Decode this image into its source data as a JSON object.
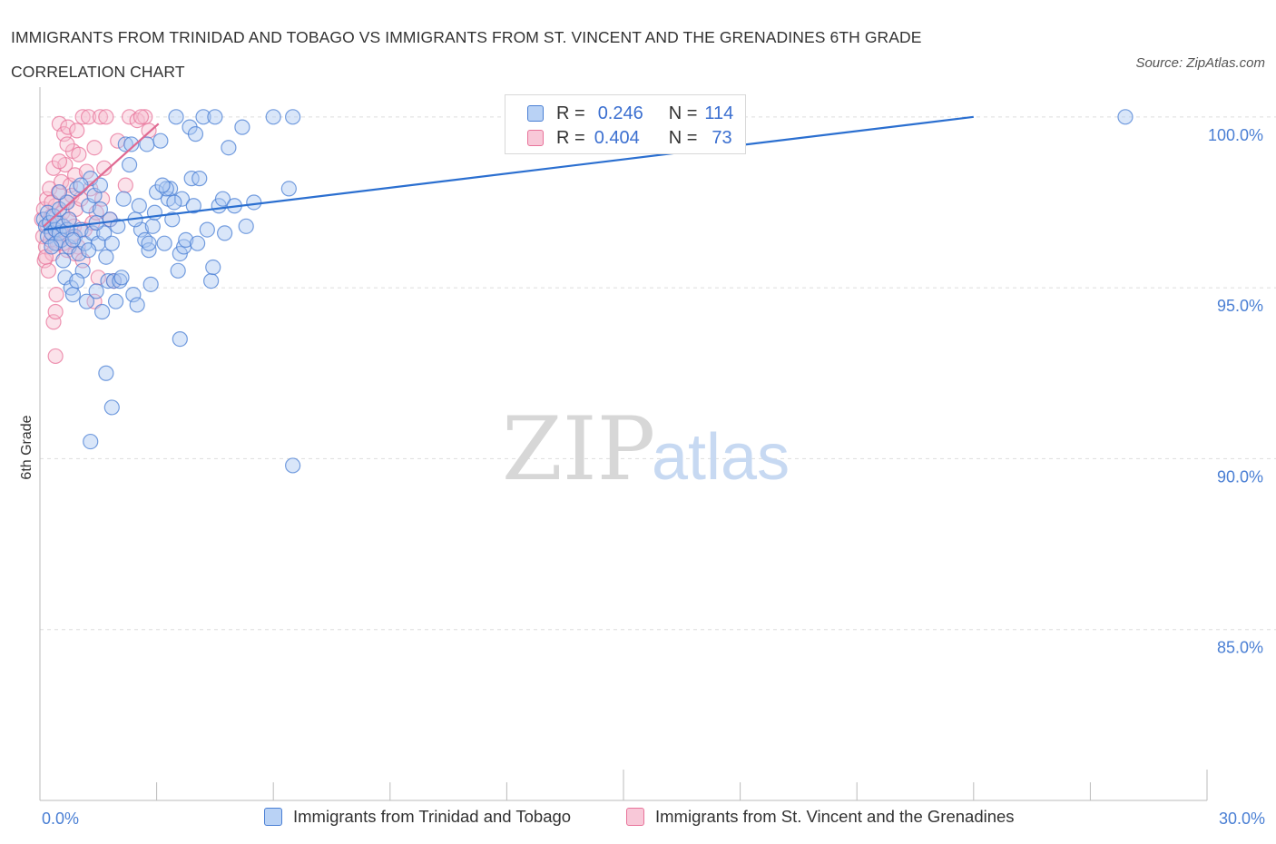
{
  "header": {
    "title": "IMMIGRANTS FROM TRINIDAD AND TOBAGO VS IMMIGRANTS FROM ST. VINCENT AND THE GRENADINES 6TH GRADE CORRELATION CHART",
    "source": "Source: ZipAtlas.com"
  },
  "legend": {
    "r_label": "R =",
    "n_label": "N =",
    "series1": {
      "r": "0.246",
      "n": "114"
    },
    "series2": {
      "r": "0.404",
      "n": "73"
    }
  },
  "watermark": {
    "zip": "ZIP",
    "atlas": "atlas"
  },
  "colors": {
    "blue": "#4a7fd4",
    "blue_fill": "#aac8f2",
    "blue_line": "#2b6fd0",
    "pink": "#e8739a",
    "pink_fill": "#f6bfd1",
    "pink_line": "#e06a92",
    "grid": "#dddddd"
  },
  "chart_data": {
    "type": "scatter",
    "title": "IMMIGRANTS FROM TRINIDAD AND TOBAGO VS IMMIGRANTS FROM ST. VINCENT AND THE GRENADINES 6TH GRADE CORRELATION CHART",
    "xlabel": "",
    "ylabel": "6th Grade",
    "xlim": [
      0,
      30
    ],
    "ylim": [
      80,
      100.5
    ],
    "x_tick_labels": [
      "0.0%",
      "30.0%"
    ],
    "y_ticks": [
      85,
      90,
      95,
      100
    ],
    "y_tick_labels": [
      "85.0%",
      "90.0%",
      "95.0%",
      "100.0%"
    ],
    "grid": true,
    "legend_position": "top-center and bottom",
    "series": [
      {
        "name": "Immigrants from Trinidad and Tobago",
        "color": "#4a7fd4",
        "trend": {
          "x": [
            0.1,
            24.0
          ],
          "y": [
            96.7,
            100.0
          ]
        },
        "points": [
          [
            0.1,
            97.0
          ],
          [
            0.15,
            96.8
          ],
          [
            0.2,
            96.5
          ],
          [
            0.2,
            97.2
          ],
          [
            0.25,
            96.9
          ],
          [
            0.3,
            96.6
          ],
          [
            0.35,
            97.1
          ],
          [
            0.4,
            96.7
          ],
          [
            0.4,
            96.3
          ],
          [
            0.45,
            96.9
          ],
          [
            0.5,
            96.6
          ],
          [
            0.5,
            97.3
          ],
          [
            0.55,
            96.4
          ],
          [
            0.6,
            96.8
          ],
          [
            0.65,
            95.3
          ],
          [
            0.7,
            97.5
          ],
          [
            0.75,
            96.2
          ],
          [
            0.8,
            95.0
          ],
          [
            0.85,
            94.8
          ],
          [
            0.9,
            96.5
          ],
          [
            0.95,
            97.9
          ],
          [
            1.0,
            96.0
          ],
          [
            1.05,
            96.7
          ],
          [
            1.1,
            95.5
          ],
          [
            1.15,
            96.3
          ],
          [
            1.2,
            94.6
          ],
          [
            1.25,
            97.4
          ],
          [
            1.3,
            98.2
          ],
          [
            1.35,
            96.6
          ],
          [
            1.4,
            97.7
          ],
          [
            1.45,
            94.9
          ],
          [
            1.5,
            96.3
          ],
          [
            1.55,
            98.0
          ],
          [
            1.6,
            94.3
          ],
          [
            1.65,
            96.6
          ],
          [
            1.7,
            95.9
          ],
          [
            1.75,
            95.2
          ],
          [
            1.8,
            97.0
          ],
          [
            1.85,
            96.3
          ],
          [
            1.9,
            95.2
          ],
          [
            1.95,
            94.6
          ],
          [
            2.0,
            96.8
          ],
          [
            2.05,
            95.2
          ],
          [
            2.1,
            95.3
          ],
          [
            2.15,
            97.6
          ],
          [
            2.2,
            99.2
          ],
          [
            2.3,
            98.6
          ],
          [
            2.4,
            94.8
          ],
          [
            2.5,
            94.5
          ],
          [
            2.55,
            97.4
          ],
          [
            2.6,
            96.7
          ],
          [
            2.7,
            96.4
          ],
          [
            2.75,
            99.2
          ],
          [
            2.8,
            96.1
          ],
          [
            2.85,
            95.1
          ],
          [
            2.9,
            96.8
          ],
          [
            2.95,
            97.2
          ],
          [
            3.0,
            97.8
          ],
          [
            3.1,
            99.3
          ],
          [
            3.2,
            96.3
          ],
          [
            3.3,
            97.6
          ],
          [
            3.35,
            97.9
          ],
          [
            3.4,
            97.0
          ],
          [
            3.5,
            100.0
          ],
          [
            3.55,
            95.5
          ],
          [
            3.6,
            96.0
          ],
          [
            3.65,
            97.6
          ],
          [
            3.7,
            96.2
          ],
          [
            3.75,
            96.4
          ],
          [
            3.85,
            99.7
          ],
          [
            3.9,
            98.2
          ],
          [
            3.95,
            97.4
          ],
          [
            4.0,
            99.5
          ],
          [
            4.1,
            98.2
          ],
          [
            4.2,
            100.0
          ],
          [
            4.3,
            96.7
          ],
          [
            4.4,
            95.2
          ],
          [
            4.45,
            95.6
          ],
          [
            4.5,
            100.0
          ],
          [
            4.6,
            97.4
          ],
          [
            4.7,
            97.6
          ],
          [
            4.75,
            96.6
          ],
          [
            4.85,
            99.1
          ],
          [
            5.0,
            97.4
          ],
          [
            5.2,
            99.7
          ],
          [
            5.3,
            96.8
          ],
          [
            5.5,
            97.5
          ],
          [
            6.0,
            100.0
          ],
          [
            6.4,
            97.9
          ],
          [
            6.5,
            100.0
          ],
          [
            3.6,
            93.5
          ],
          [
            1.7,
            92.5
          ],
          [
            1.85,
            91.5
          ],
          [
            1.3,
            90.5
          ],
          [
            6.5,
            89.8
          ],
          [
            0.6,
            95.8
          ],
          [
            1.25,
            96.1
          ],
          [
            0.7,
            96.7
          ],
          [
            0.5,
            97.8
          ],
          [
            2.8,
            96.3
          ],
          [
            3.25,
            97.9
          ],
          [
            1.05,
            98.0
          ],
          [
            0.85,
            96.4
          ],
          [
            2.45,
            97.0
          ],
          [
            1.55,
            97.3
          ],
          [
            0.95,
            95.2
          ],
          [
            2.35,
            99.2
          ],
          [
            0.3,
            96.2
          ],
          [
            0.75,
            97.0
          ],
          [
            1.45,
            96.9
          ],
          [
            3.15,
            98.0
          ],
          [
            27.9,
            100.0
          ],
          [
            4.05,
            96.3
          ],
          [
            3.45,
            97.5
          ]
        ]
      },
      {
        "name": "Immigrants from St. Vincent and the Grenadines",
        "color": "#e8739a",
        "trend": {
          "x": [
            0.1,
            3.05
          ],
          "y": [
            96.8,
            99.8
          ]
        },
        "points": [
          [
            0.05,
            97.0
          ],
          [
            0.08,
            96.5
          ],
          [
            0.1,
            97.3
          ],
          [
            0.12,
            95.8
          ],
          [
            0.15,
            96.2
          ],
          [
            0.18,
            97.6
          ],
          [
            0.2,
            96.8
          ],
          [
            0.22,
            95.5
          ],
          [
            0.25,
            97.9
          ],
          [
            0.27,
            96.4
          ],
          [
            0.3,
            97.1
          ],
          [
            0.32,
            96.0
          ],
          [
            0.35,
            98.5
          ],
          [
            0.38,
            96.7
          ],
          [
            0.4,
            97.4
          ],
          [
            0.42,
            94.8
          ],
          [
            0.45,
            96.3
          ],
          [
            0.48,
            97.8
          ],
          [
            0.5,
            99.8
          ],
          [
            0.52,
            96.9
          ],
          [
            0.55,
            98.1
          ],
          [
            0.58,
            97.2
          ],
          [
            0.6,
            96.6
          ],
          [
            0.62,
            99.5
          ],
          [
            0.65,
            98.6
          ],
          [
            0.68,
            97.5
          ],
          [
            0.7,
            96.1
          ],
          [
            0.72,
            99.7
          ],
          [
            0.75,
            97.0
          ],
          [
            0.78,
            98.0
          ],
          [
            0.8,
            96.5
          ],
          [
            0.82,
            97.7
          ],
          [
            0.85,
            99.0
          ],
          [
            0.88,
            96.8
          ],
          [
            0.9,
            98.3
          ],
          [
            0.92,
            97.3
          ],
          [
            0.95,
            99.6
          ],
          [
            0.98,
            96.2
          ],
          [
            1.0,
            98.9
          ],
          [
            1.05,
            97.6
          ],
          [
            1.1,
            100.0
          ],
          [
            1.15,
            96.7
          ],
          [
            1.2,
            98.4
          ],
          [
            1.25,
            100.0
          ],
          [
            1.3,
            97.9
          ],
          [
            1.35,
            96.9
          ],
          [
            1.4,
            99.1
          ],
          [
            1.45,
            97.2
          ],
          [
            1.5,
            95.3
          ],
          [
            1.55,
            100.0
          ],
          [
            1.6,
            97.6
          ],
          [
            1.65,
            98.5
          ],
          [
            1.7,
            100.0
          ],
          [
            1.8,
            97.0
          ],
          [
            1.9,
            95.2
          ],
          [
            2.0,
            99.3
          ],
          [
            2.2,
            98.0
          ],
          [
            2.3,
            100.0
          ],
          [
            2.5,
            99.9
          ],
          [
            2.7,
            100.0
          ],
          [
            2.8,
            99.6
          ],
          [
            0.35,
            94.0
          ],
          [
            0.4,
            94.3
          ],
          [
            0.4,
            93.0
          ],
          [
            1.4,
            94.6
          ],
          [
            0.15,
            95.9
          ],
          [
            0.6,
            96.3
          ],
          [
            0.9,
            96.0
          ],
          [
            1.1,
            95.8
          ],
          [
            0.3,
            97.5
          ],
          [
            0.5,
            98.7
          ],
          [
            2.6,
            100.0
          ],
          [
            0.7,
            99.2
          ]
        ]
      }
    ]
  },
  "bottom_legend": {
    "item1": "Immigrants from Trinidad and Tobago",
    "item2": "Immigrants from St. Vincent and the Grenadines"
  }
}
